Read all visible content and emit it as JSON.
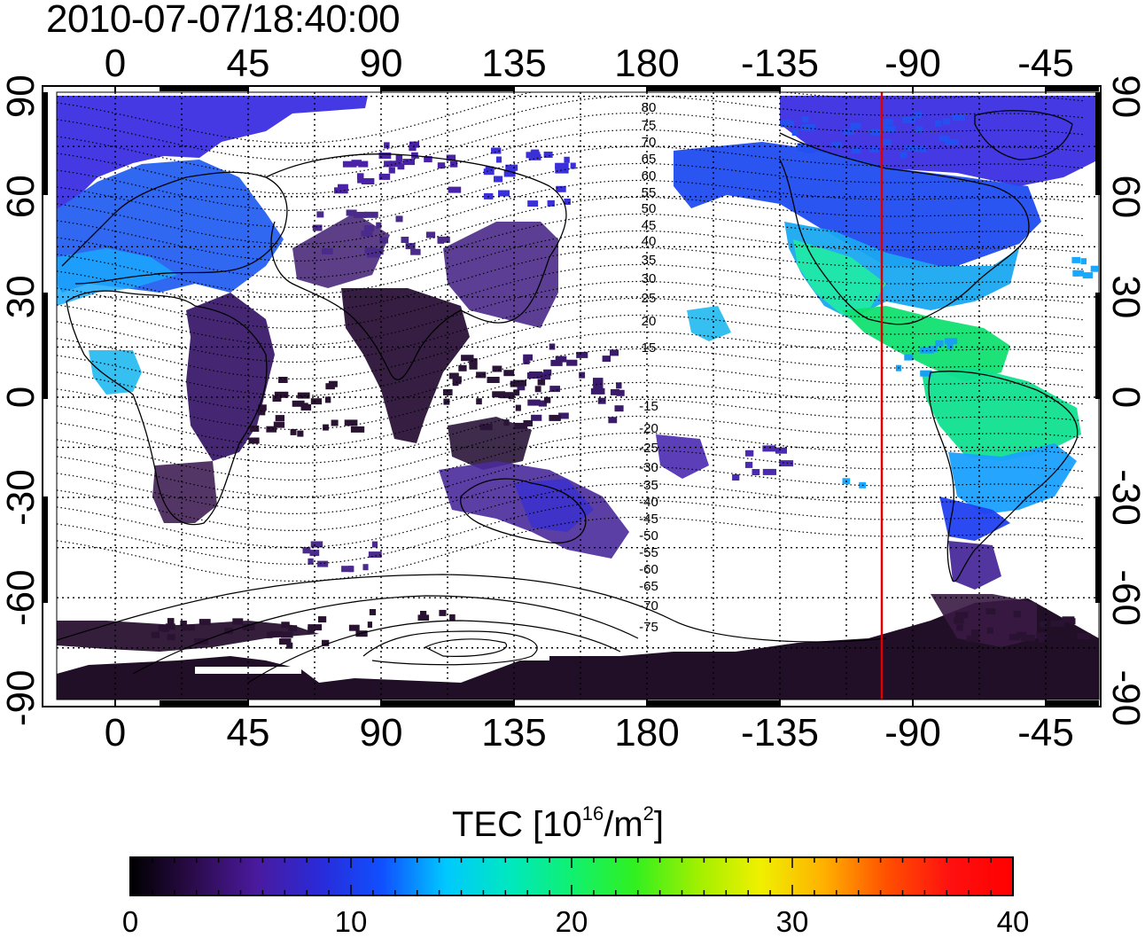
{
  "timestamp": "2010-07-07/18:40:00",
  "map": {
    "lon_labels": [
      "0",
      "45",
      "90",
      "135",
      "180",
      "-135",
      "-90",
      "-45"
    ],
    "lat_labels": [
      "90",
      "60",
      "30",
      "0",
      "-30",
      "-60",
      "-90"
    ],
    "contour_labels": [
      "80",
      "75",
      "70",
      "65",
      "60",
      "55",
      "50",
      "45",
      "40",
      "35",
      "30",
      "25",
      "20",
      "15",
      "-15",
      "-20",
      "-25",
      "-30",
      "-35",
      "-40",
      "-45",
      "-50",
      "-55",
      "-60",
      "-65",
      "-70",
      "-75"
    ],
    "grid": true,
    "red_meridian_lon": -100
  },
  "colorbar": {
    "title_prefix": "TEC  [10",
    "title_exp1": "16",
    "title_mid": "/m",
    "title_exp2": "2",
    "title_suffix": "]",
    "ticks": [
      "0",
      "10",
      "20",
      "30",
      "40"
    ],
    "colors": {
      "stops": [
        "#000000",
        "#2b0b4a",
        "#4a1a9e",
        "#2a2ad8",
        "#1050ff",
        "#00c8ff",
        "#00e8c0",
        "#10f070",
        "#30f020",
        "#a0f000",
        "#f0f000",
        "#ffb000",
        "#ff5000",
        "#ff1010",
        "#ff0000"
      ]
    }
  }
}
